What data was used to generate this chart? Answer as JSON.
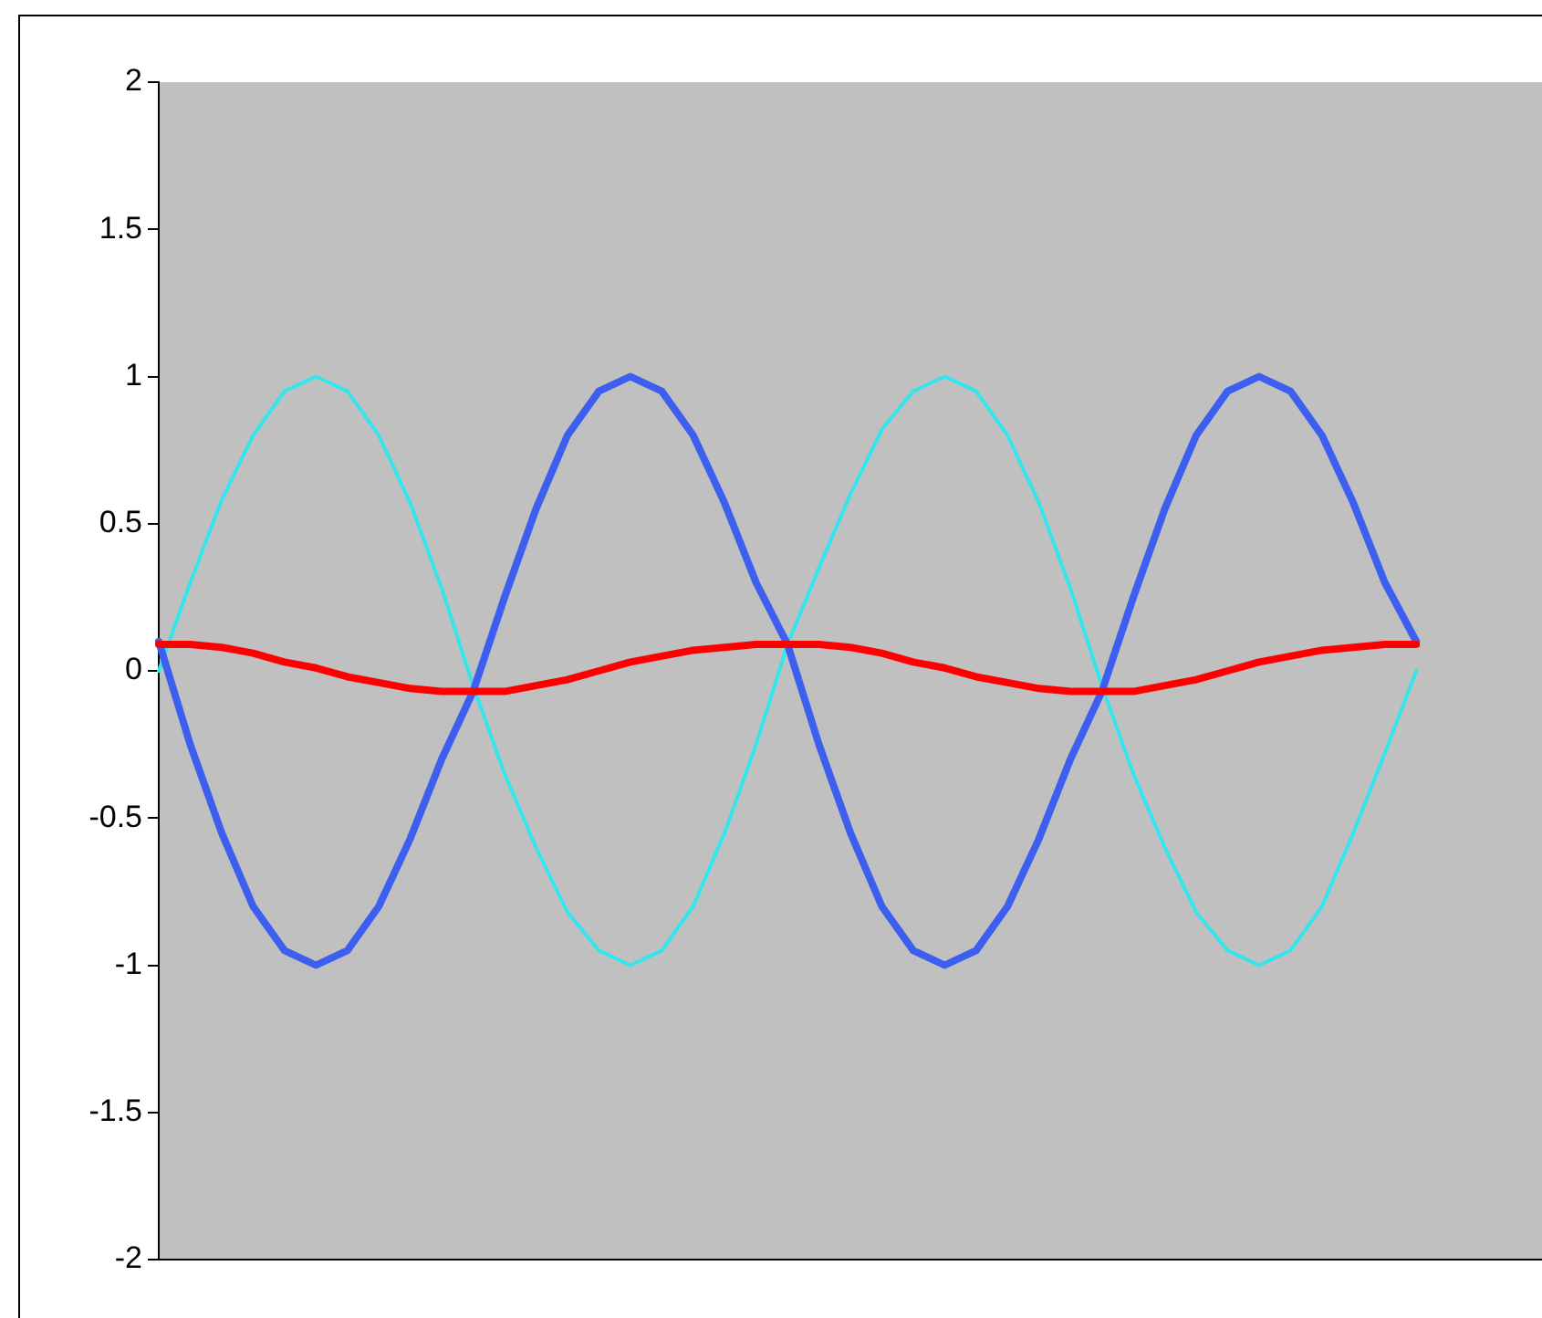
{
  "chart_data": {
    "type": "line",
    "categories": [
      null,
      null,
      null,
      null,
      null,
      null,
      null,
      null,
      null,
      null,
      null,
      null,
      null,
      null,
      null,
      null,
      null,
      null,
      null,
      null,
      null,
      null,
      null,
      null,
      null,
      null,
      null,
      null,
      null,
      null,
      null,
      null,
      null,
      null,
      null,
      null,
      null,
      null,
      null,
      null,
      null,
      null,
      null,
      null,
      null
    ],
    "series": [
      {
        "color": "#33e6ee",
        "values": [
          0,
          0.3,
          0.58,
          0.8,
          0.95,
          1,
          0.95,
          0.8,
          0.57,
          0.28,
          -0.05,
          -0.35,
          -0.6,
          -0.82,
          -0.95,
          -1,
          -0.95,
          -0.8,
          -0.55,
          -0.25,
          0.09,
          0.35,
          0.6,
          0.82,
          0.95,
          1,
          0.95,
          0.8,
          0.57,
          0.28,
          -0.05,
          -0.35,
          -0.6,
          -0.82,
          -0.95,
          -1,
          -0.95,
          -0.8,
          -0.55,
          -0.28,
          0,
          null,
          null,
          null,
          null
        ]
      },
      {
        "color": "#3d5ff0",
        "values": [
          0.1,
          -0.25,
          -0.55,
          -0.8,
          -0.95,
          -1,
          -0.95,
          -0.8,
          -0.57,
          -0.3,
          -0.07,
          0.25,
          0.55,
          0.8,
          0.95,
          1,
          0.95,
          0.8,
          0.57,
          0.3,
          0.09,
          -0.25,
          -0.55,
          -0.8,
          -0.95,
          -1,
          -0.95,
          -0.8,
          -0.57,
          -0.3,
          -0.07,
          0.25,
          0.55,
          0.8,
          0.95,
          1,
          0.95,
          0.8,
          0.57,
          0.3,
          0.1,
          null,
          null,
          null,
          null
        ]
      },
      {
        "color": "#ff0000",
        "values": [
          0.09,
          0.09,
          0.08,
          0.06,
          0.03,
          0.01,
          -0.02,
          -0.04,
          -0.06,
          -0.07,
          -0.07,
          -0.07,
          -0.05,
          -0.03,
          0,
          0.03,
          0.05,
          0.07,
          0.08,
          0.09,
          0.09,
          0.09,
          0.08,
          0.06,
          0.03,
          0.01,
          -0.02,
          -0.04,
          -0.06,
          -0.07,
          -0.07,
          -0.07,
          -0.05,
          -0.03,
          0,
          0.03,
          0.05,
          0.07,
          0.08,
          0.09,
          0.09,
          null,
          null,
          null,
          null
        ]
      }
    ],
    "ylim": [
      -2,
      2
    ],
    "yticks": [
      -2,
      -1.5,
      -1,
      -0.5,
      0,
      0.5,
      1,
      1.5,
      2
    ],
    "grid": false,
    "legend": false,
    "tick_labels": "y",
    "marker": "none",
    "line_style": "solid"
  }
}
